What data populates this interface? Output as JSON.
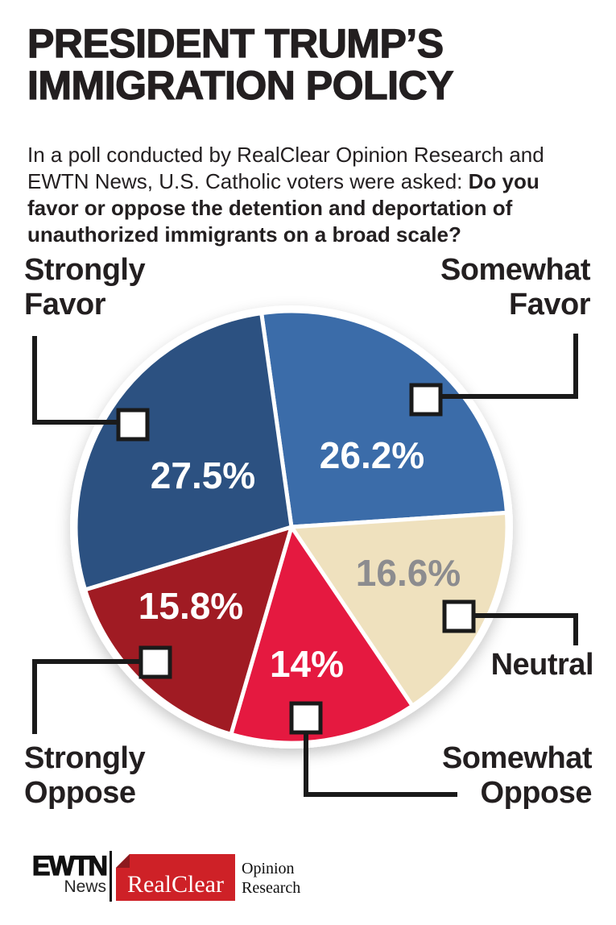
{
  "header": {
    "title_line1": "PRESIDENT TRUMP’S",
    "title_line2": "IMMIGRATION POLICY",
    "intro_normal": "In a poll conducted by RealClear Opinion Research and EWTN News, U.S. Catholic voters were asked: ",
    "intro_bold": "Do you favor or oppose the detention and deportation of unauthorized immigrants on a broad scale?"
  },
  "chart_data": {
    "type": "pie",
    "title": "President Trump's Immigration Policy",
    "question": "Do you favor or oppose the detention and deportation of unauthorized immigrants on a broad scale?",
    "start_angle_deg": -8,
    "direction": "clockwise",
    "legend_position": "callout-labels-around-pie",
    "separator_color": "#FFFFFF",
    "connector_color": "#1A1A1A",
    "segments": [
      {
        "label": "Somewhat Favor",
        "value": 26.2,
        "display": "26.2%",
        "color": "#3B6CA9",
        "pct_color": "#FFFFFF"
      },
      {
        "label": "Neutral",
        "value": 16.6,
        "display": "16.6%",
        "color": "#EFE1BE",
        "pct_color": "#8C8C8F"
      },
      {
        "label": "Somewhat Oppose",
        "value": 14,
        "display": "14%",
        "color": "#E51940",
        "pct_color": "#FFFFFF"
      },
      {
        "label": "Strongly Oppose",
        "value": 15.8,
        "display": "15.8%",
        "color": "#A01B23",
        "pct_color": "#FFFFFF"
      },
      {
        "label": "Strongly Favor",
        "value": 27.5,
        "display": "27.5%",
        "color": "#2C5181",
        "pct_color": "#FFFFFF"
      }
    ]
  },
  "footer": {
    "ewtn": "EWTN",
    "ewtn_sub": "News",
    "realclear": "RealClear",
    "realclear_bg": "#CE2127",
    "opinion_line1": "Opinion",
    "opinion_line2": "Research"
  }
}
